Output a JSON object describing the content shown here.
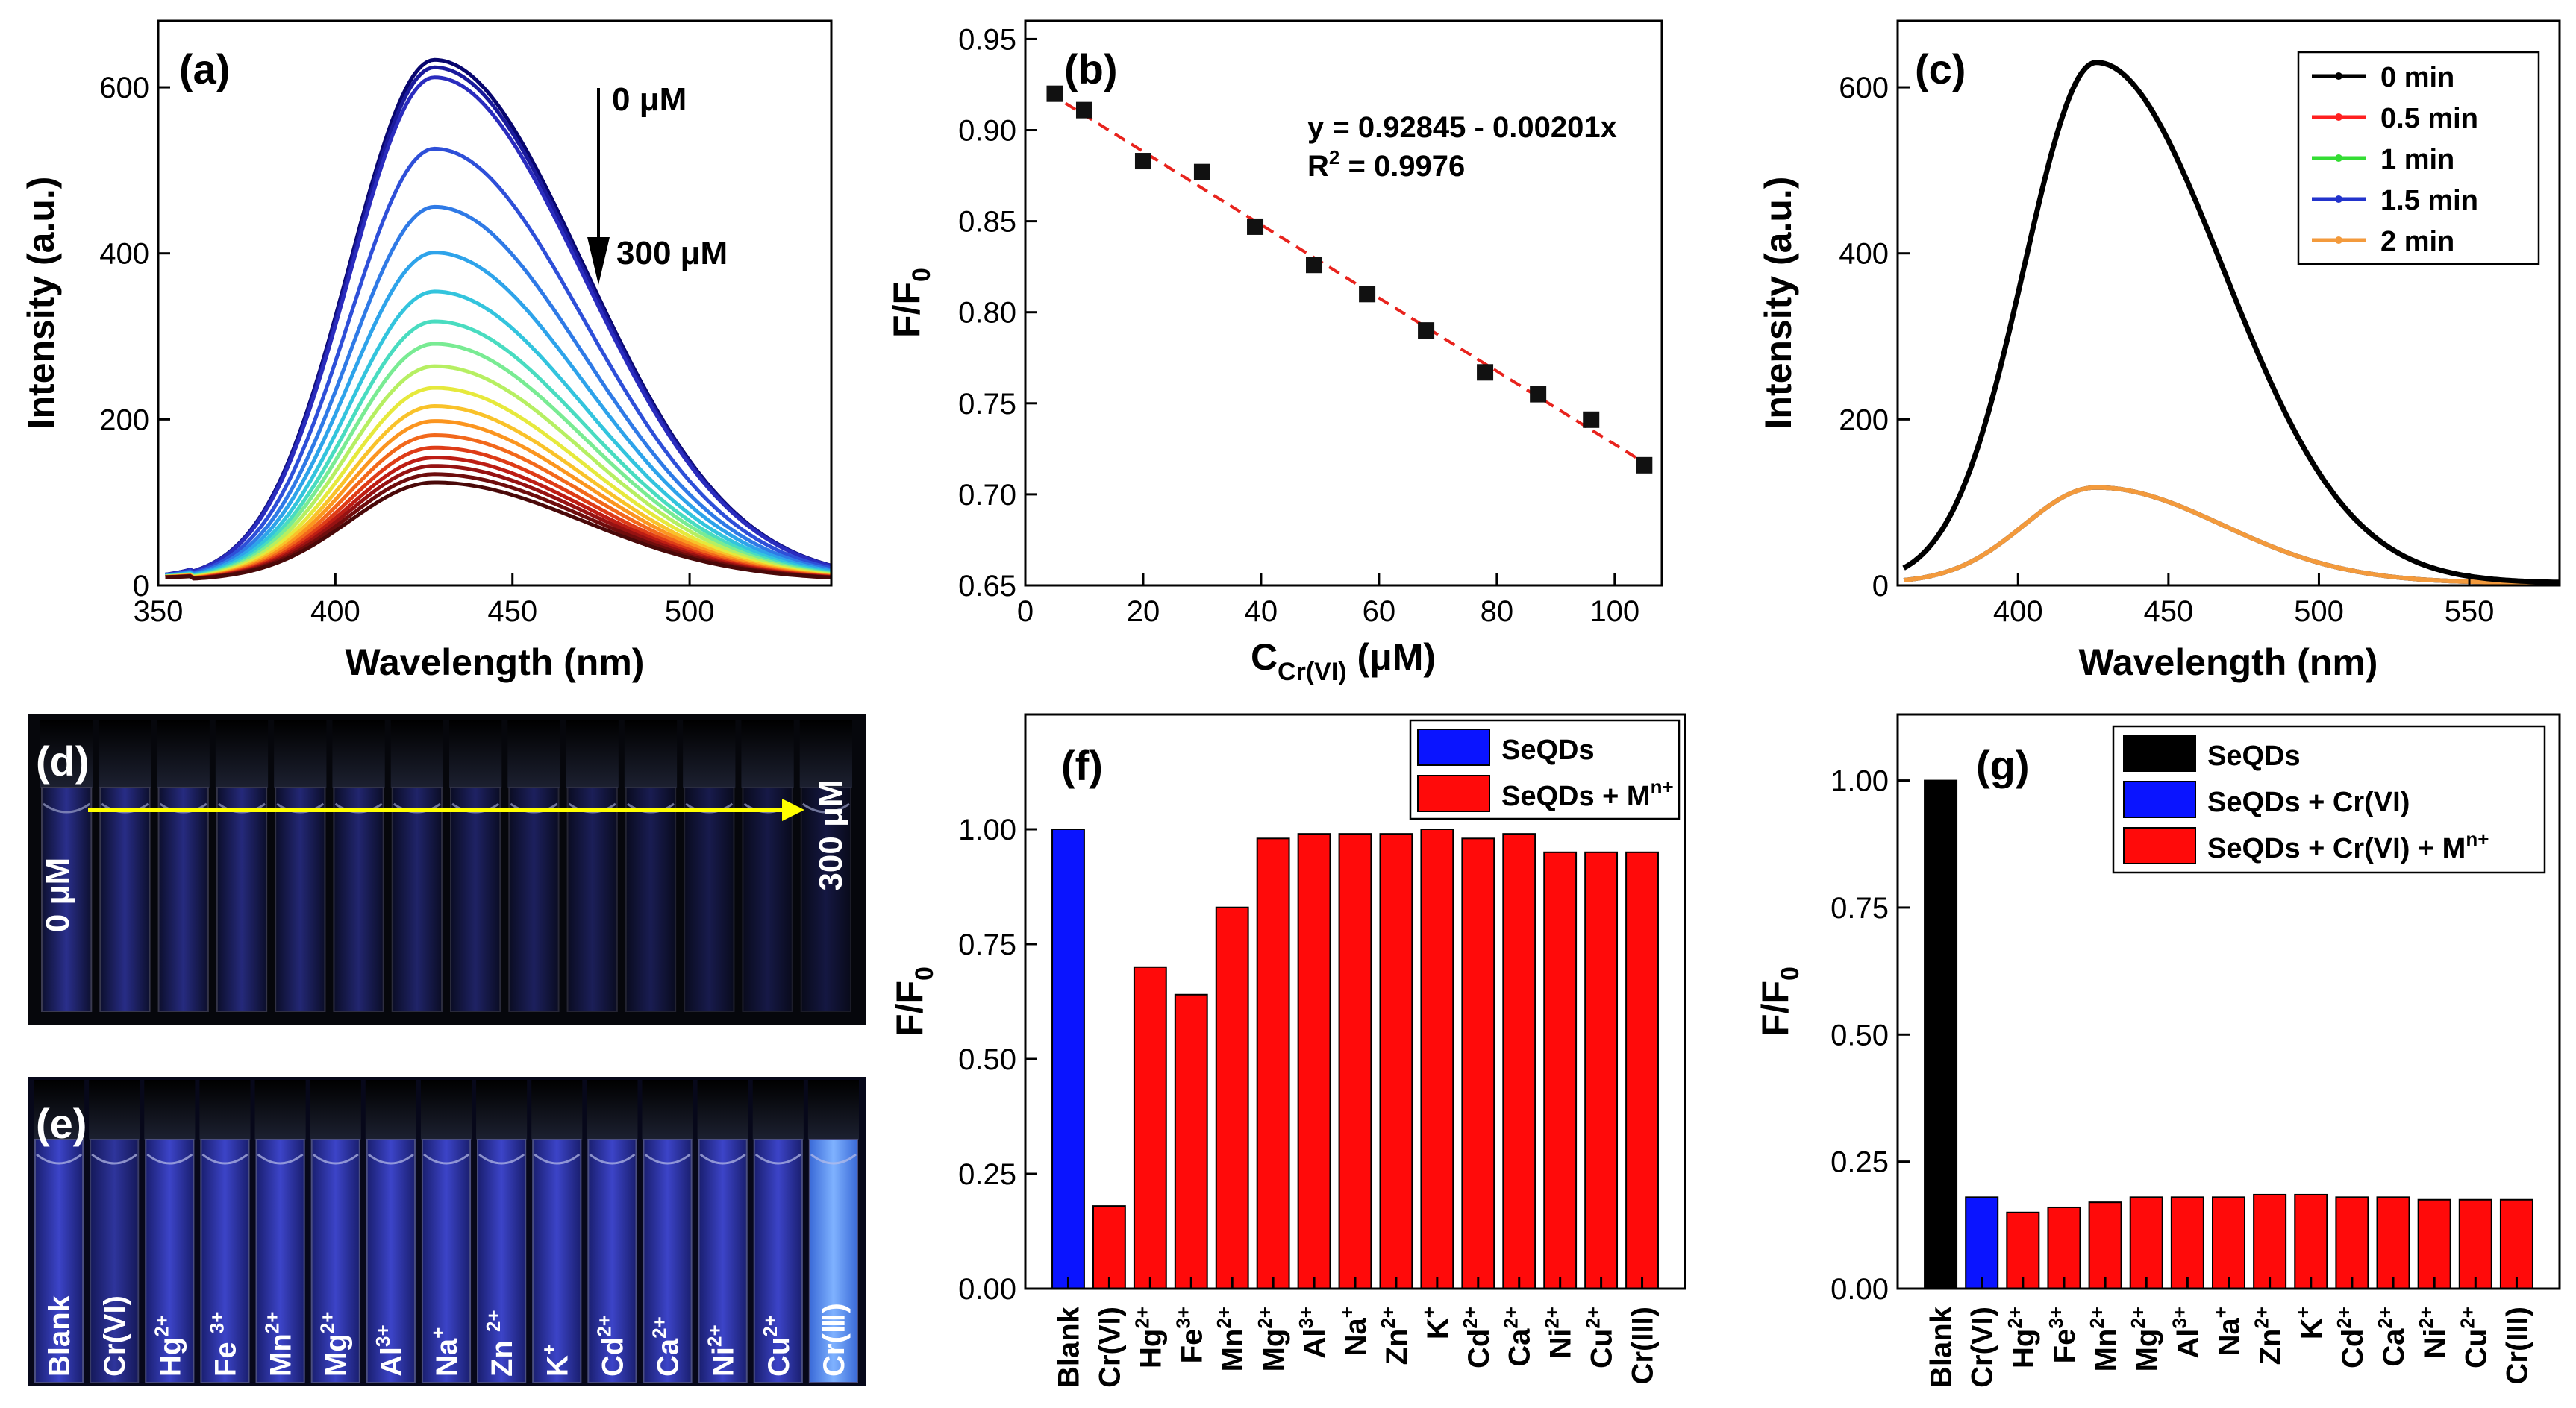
{
  "chart_data": [
    {
      "panel": "(a)",
      "type": "line",
      "title": "",
      "xlabel": "Wavelength (nm)",
      "ylabel": "Intensity (a.u.)",
      "xlim": [
        350,
        540
      ],
      "ylim": [
        0,
        680
      ],
      "xticks": [
        350,
        400,
        450,
        500
      ],
      "yticks": [
        0,
        200,
        400,
        600
      ],
      "annotation_top": "0 μM",
      "annotation_bottom": "300 μM",
      "peak_wavelength": 428,
      "colors": [
        "#08066e",
        "#1a1a9c",
        "#2a2cbe",
        "#2e4fd8",
        "#2f7ae6",
        "#2ea3ea",
        "#33c4dd",
        "#49dcc0",
        "#79eb93",
        "#b6ef62",
        "#e6e93c",
        "#f9c22a",
        "#fb951f",
        "#f2681b",
        "#de3c17",
        "#bd1d14",
        "#961212",
        "#6e0d0d",
        "#4a0909"
      ],
      "series": [
        {
          "name": "0 μM",
          "peak": 627
        },
        {
          "name": "",
          "peak": 618
        },
        {
          "name": "",
          "peak": 606
        },
        {
          "name": "",
          "peak": 520
        },
        {
          "name": "",
          "peak": 450
        },
        {
          "name": "",
          "peak": 395
        },
        {
          "name": "",
          "peak": 348
        },
        {
          "name": "",
          "peak": 312
        },
        {
          "name": "",
          "peak": 285
        },
        {
          "name": "",
          "peak": 258
        },
        {
          "name": "",
          "peak": 232
        },
        {
          "name": "",
          "peak": 210
        },
        {
          "name": "",
          "peak": 192
        },
        {
          "name": "",
          "peak": 175
        },
        {
          "name": "",
          "peak": 160
        },
        {
          "name": "",
          "peak": 148
        },
        {
          "name": "",
          "peak": 138
        },
        {
          "name": "",
          "peak": 128
        },
        {
          "name": "300 μM",
          "peak": 118
        }
      ]
    },
    {
      "panel": "(b)",
      "type": "scatter",
      "xlabel": "C",
      "xlabel_sub": "Cr(VI)",
      "xlabel_unit": " (μM)",
      "ylabel": "F/F",
      "ylabel_sub": "0",
      "xlim": [
        0,
        108
      ],
      "ylim": [
        0.65,
        0.96
      ],
      "xticks": [
        0,
        20,
        40,
        60,
        80,
        100
      ],
      "yticks": [
        0.65,
        0.7,
        0.75,
        0.8,
        0.85,
        0.9,
        0.95
      ],
      "x": [
        5,
        10,
        20,
        30,
        39,
        49,
        58,
        68,
        78,
        87,
        96,
        105
      ],
      "y": [
        0.92,
        0.911,
        0.883,
        0.877,
        0.847,
        0.826,
        0.81,
        0.79,
        0.767,
        0.755,
        0.741,
        0.716
      ],
      "fit": {
        "intercept": 0.92845,
        "slope": -0.00201
      },
      "equation": "y = 0.92845 - 0.00201x",
      "r2_label": "R",
      "r2_sup": "2",
      "r2_value": " = 0.9976"
    },
    {
      "panel": "(c)",
      "type": "line",
      "xlabel": "Wavelength (nm)",
      "ylabel": "Intensity (a.u.)",
      "xlim": [
        360,
        580
      ],
      "ylim": [
        0,
        680
      ],
      "xticks": [
        400,
        450,
        500,
        550
      ],
      "yticks": [
        0,
        200,
        400,
        600
      ],
      "series": [
        {
          "name": "0 min",
          "peak": 627,
          "color": "#000000"
        },
        {
          "name": "0.5 min",
          "peak": 115,
          "color": "#ff2020"
        },
        {
          "name": "1 min",
          "peak": 115,
          "color": "#33dd33"
        },
        {
          "name": "1.5 min",
          "peak": 115,
          "color": "#2233cc"
        },
        {
          "name": "2 min",
          "peak": 115,
          "color": "#f39a3c"
        }
      ]
    },
    {
      "panel": "(f)",
      "type": "bar",
      "ylabel": "F/F",
      "ylabel_sub": "0",
      "ylim": [
        0,
        1.25
      ],
      "yticks": [
        0.0,
        0.25,
        0.5,
        0.75,
        1.0
      ],
      "legend": [
        {
          "name": "SeQDs",
          "color": "#0a14ff"
        },
        {
          "name": "SeQDs + M",
          "sup": "n+",
          "color": "#ff0a0a"
        }
      ],
      "categories": [
        {
          "base": "Blank",
          "sup": ""
        },
        {
          "base": "Cr(VI)",
          "sup": ""
        },
        {
          "base": "Hg",
          "sup": "2+"
        },
        {
          "base": "Fe",
          "sup": "3+"
        },
        {
          "base": "Mn",
          "sup": "2+"
        },
        {
          "base": "Mg",
          "sup": "2+"
        },
        {
          "base": "Al",
          "sup": "3+"
        },
        {
          "base": "Na",
          "sup": "+"
        },
        {
          "base": "Zn",
          "sup": "2+"
        },
        {
          "base": "K",
          "sup": "+"
        },
        {
          "base": "Cd",
          "sup": "2+"
        },
        {
          "base": "Ca",
          "sup": "2+"
        },
        {
          "base": "Ni",
          "sup": "2+"
        },
        {
          "base": "Cu",
          "sup": "2+"
        },
        {
          "base": "Cr(III)",
          "sup": ""
        }
      ],
      "values": [
        1.0,
        0.18,
        0.7,
        0.64,
        0.83,
        0.98,
        0.99,
        0.99,
        0.99,
        1.0,
        0.98,
        0.99,
        0.95,
        0.95,
        0.95
      ],
      "bar_colors": [
        "#0a14ff",
        "#ff0a0a",
        "#ff0a0a",
        "#ff0a0a",
        "#ff0a0a",
        "#ff0a0a",
        "#ff0a0a",
        "#ff0a0a",
        "#ff0a0a",
        "#ff0a0a",
        "#ff0a0a",
        "#ff0a0a",
        "#ff0a0a",
        "#ff0a0a",
        "#ff0a0a"
      ]
    },
    {
      "panel": "(g)",
      "type": "bar",
      "ylabel": "F/F",
      "ylabel_sub": "0",
      "ylim": [
        0,
        1.13
      ],
      "yticks": [
        0.0,
        0.25,
        0.5,
        0.75,
        1.0
      ],
      "legend": [
        {
          "name": "SeQDs",
          "color": "#000000"
        },
        {
          "name": "SeQDs + Cr(VI)",
          "color": "#0a14ff"
        },
        {
          "name": "SeQDs + Cr(VI) + M",
          "sup": "n+",
          "color": "#ff0a0a"
        }
      ],
      "categories": [
        {
          "base": "Blank",
          "sup": ""
        },
        {
          "base": "Cr(VI)",
          "sup": ""
        },
        {
          "base": "Hg",
          "sup": "2+"
        },
        {
          "base": "Fe",
          "sup": "3+"
        },
        {
          "base": "Mn",
          "sup": "2+"
        },
        {
          "base": "Mg",
          "sup": "2+"
        },
        {
          "base": "Al",
          "sup": "3+"
        },
        {
          "base": "Na",
          "sup": "+"
        },
        {
          "base": "Zn",
          "sup": "2+"
        },
        {
          "base": "K",
          "sup": "+"
        },
        {
          "base": "Cd",
          "sup": "2+"
        },
        {
          "base": "Ca",
          "sup": "2+"
        },
        {
          "base": "Ni",
          "sup": "2+"
        },
        {
          "base": "Cu",
          "sup": "2+"
        },
        {
          "base": "Cr(III)",
          "sup": ""
        }
      ],
      "values": [
        1.0,
        0.18,
        0.15,
        0.16,
        0.17,
        0.18,
        0.18,
        0.18,
        0.185,
        0.185,
        0.18,
        0.18,
        0.175,
        0.175,
        0.175
      ],
      "bar_colors": [
        "#000000",
        "#0a14ff",
        "#ff0a0a",
        "#ff0a0a",
        "#ff0a0a",
        "#ff0a0a",
        "#ff0a0a",
        "#ff0a0a",
        "#ff0a0a",
        "#ff0a0a",
        "#ff0a0a",
        "#ff0a0a",
        "#ff0a0a",
        "#ff0a0a",
        "#ff0a0a"
      ]
    }
  ],
  "photos": {
    "d": {
      "panel": "(d)",
      "label_start": "0 μM",
      "label_end": "300 μM",
      "vial_count": 14
    },
    "e": {
      "panel": "(e)",
      "vial_labels": [
        {
          "base": "Blank",
          "sup": ""
        },
        {
          "base": "Cr(VI)",
          "sup": ""
        },
        {
          "base": "Hg",
          "sup": "2+"
        },
        {
          "base": "Fe ",
          "sup": "3+"
        },
        {
          "base": "Mn",
          "sup": "2+"
        },
        {
          "base": "Mg",
          "sup": "2+"
        },
        {
          "base": "Al",
          "sup": "3+"
        },
        {
          "base": "Na",
          "sup": "+"
        },
        {
          "base": "Zn ",
          "sup": "2+"
        },
        {
          "base": "K",
          "sup": "+"
        },
        {
          "base": "Cd",
          "sup": "2+"
        },
        {
          "base": "Ca",
          "sup": "2+"
        },
        {
          "base": "Ni",
          "sup": "2+"
        },
        {
          "base": "Cu",
          "sup": "2+"
        },
        {
          "base": "Cr(Ⅲ)",
          "sup": ""
        }
      ]
    }
  }
}
